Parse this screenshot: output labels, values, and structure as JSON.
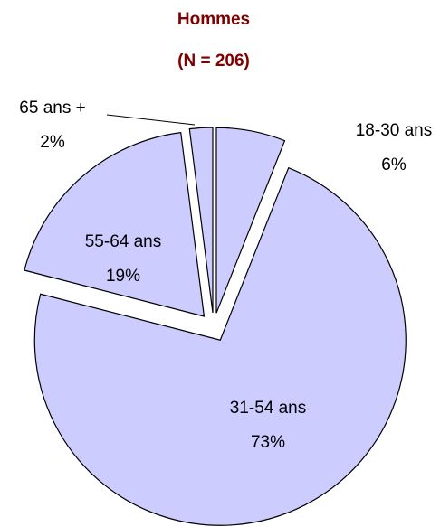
{
  "chart_data": {
    "type": "pie",
    "title": "Hommes",
    "subtitle": "(N = 206)",
    "categories": [
      "18-30 ans",
      "31-54 ans",
      "55-64 ans",
      "65 ans +"
    ],
    "values": [
      6,
      73,
      19,
      2
    ],
    "value_labels": [
      "6%",
      "73%",
      "19%",
      "2%"
    ],
    "color": "#ccccff"
  }
}
